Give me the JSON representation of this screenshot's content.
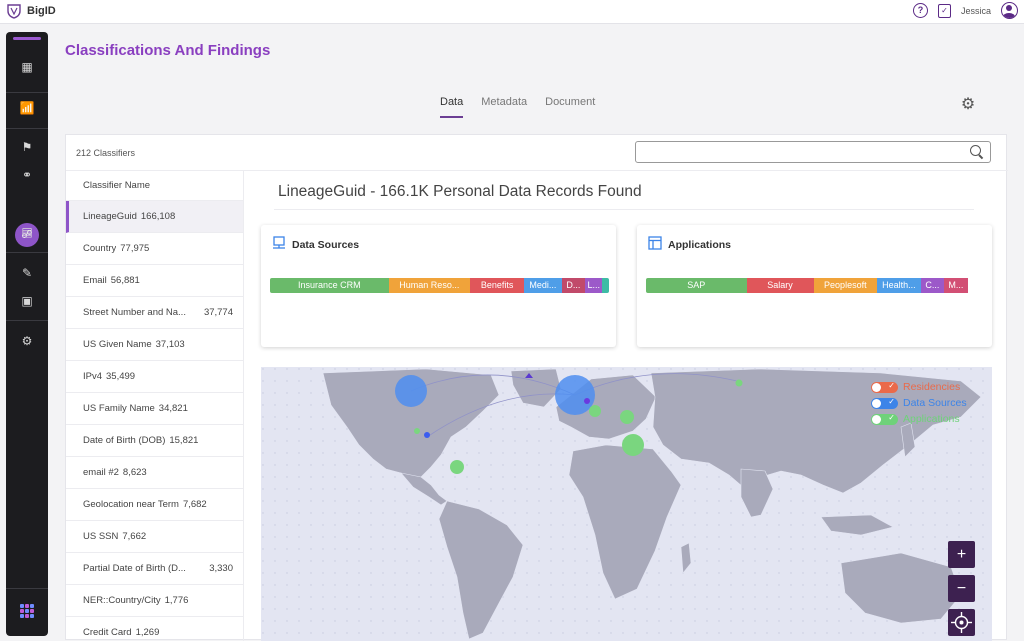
{
  "app": {
    "name": "BigID"
  },
  "topbar": {
    "username": "Jessica"
  },
  "page": {
    "title": "Classifications And Findings"
  },
  "tabs": [
    {
      "label": "Data",
      "active": true
    },
    {
      "label": "Metadata",
      "active": false
    },
    {
      "label": "Document",
      "active": false
    }
  ],
  "classifiers": {
    "count_label": "212 Classifiers",
    "search_placeholder": "",
    "header": "Classifier Name",
    "rows": [
      {
        "name": "LineageGuid",
        "count": "166,108",
        "active": true
      },
      {
        "name": "Country",
        "count": "77,975"
      },
      {
        "name": "Email",
        "count": "56,881"
      },
      {
        "name": "Street Number and Na...",
        "count": "37,774"
      },
      {
        "name": "US Given Name",
        "count": "37,103"
      },
      {
        "name": "IPv4",
        "count": "35,499"
      },
      {
        "name": "US Family Name",
        "count": "34,821"
      },
      {
        "name": "Date of Birth (DOB)",
        "count": "15,821"
      },
      {
        "name": "email #2",
        "count": "8,623"
      },
      {
        "name": "Geolocation near Term",
        "count": "7,682"
      },
      {
        "name": "US SSN",
        "count": "7,662"
      },
      {
        "name": "Partial Date of Birth (D...",
        "count": "3,330"
      },
      {
        "name": "NER::Country/City",
        "count": "1,776"
      },
      {
        "name": "Credit Card",
        "count": "1,269"
      }
    ]
  },
  "detail": {
    "title": "LineageGuid - 166.1K Personal Data Records Found"
  },
  "data_sources": {
    "title": "Data Sources",
    "segments": [
      {
        "label": "Insurance CRM",
        "share": 0.35,
        "color": "#6aba6a"
      },
      {
        "label": "Human Reso...",
        "share": 0.24,
        "color": "#f0a33a"
      },
      {
        "label": "Benefits",
        "share": 0.16,
        "color": "#e0565a"
      },
      {
        "label": "Medi...",
        "share": 0.11,
        "color": "#4f9ee8"
      },
      {
        "label": "D...",
        "share": 0.07,
        "color": "#c14a6a"
      },
      {
        "label": "L...",
        "share": 0.05,
        "color": "#9c59c9"
      },
      {
        "label": "",
        "share": 0.02,
        "color": "#3dbba5"
      }
    ]
  },
  "applications": {
    "title": "Applications",
    "segments": [
      {
        "label": "SAP",
        "share": 0.3,
        "color": "#6aba6a"
      },
      {
        "label": "Salary",
        "share": 0.2,
        "color": "#e0565a"
      },
      {
        "label": "Peoplesoft",
        "share": 0.19,
        "color": "#f0a33a"
      },
      {
        "label": "Health...",
        "share": 0.13,
        "color": "#4f9ee8"
      },
      {
        "label": "C...",
        "share": 0.07,
        "color": "#9c59c9"
      },
      {
        "label": "M...",
        "share": 0.07,
        "color": "#d24f74"
      }
    ]
  },
  "map": {
    "legend": [
      {
        "label": "Residencies",
        "color": "#ea6a4a"
      },
      {
        "label": "Data Sources",
        "color": "#3c84e8"
      },
      {
        "label": "Applications",
        "color": "#6fd27a"
      }
    ],
    "zoom_in": "+",
    "zoom_out": "−"
  }
}
